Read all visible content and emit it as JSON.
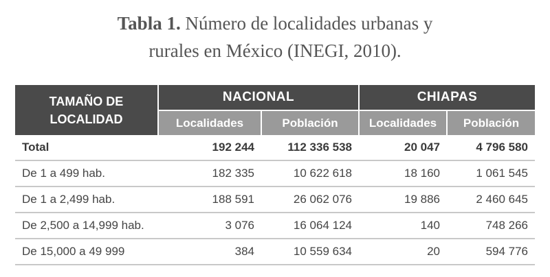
{
  "caption": {
    "label": "Tabla 1.",
    "line1": "Número de localidades urbanas y",
    "line2": "rurales en México (INEGI, 2010)."
  },
  "table": {
    "corner_header": [
      "TAMAÑO DE",
      "LOCALIDAD"
    ],
    "groups": [
      "NACIONAL",
      "CHIAPAS"
    ],
    "subheaders": [
      "Localidades",
      "Población",
      "Localidades",
      "Población"
    ],
    "rows": [
      {
        "label": "Total",
        "values": [
          "192 244",
          "112 336 538",
          "20 047",
          "4 796 580"
        ]
      },
      {
        "label": "De 1 a 499 hab.",
        "values": [
          "182 335",
          "10 622 618",
          "18 160",
          "1 061 545"
        ]
      },
      {
        "label": "De 1 a 2,499 hab.",
        "values": [
          "188 591",
          "26 062 076",
          "19 886",
          "2 460 645"
        ]
      },
      {
        "label": "De 2,500 a 14,999 hab.",
        "values": [
          "3 076",
          "16 064 124",
          "140",
          "748 266"
        ]
      },
      {
        "label": "De 15,000 a 49 999",
        "values": [
          "384",
          "10 559 634",
          "20",
          "594 776"
        ]
      }
    ]
  }
}
